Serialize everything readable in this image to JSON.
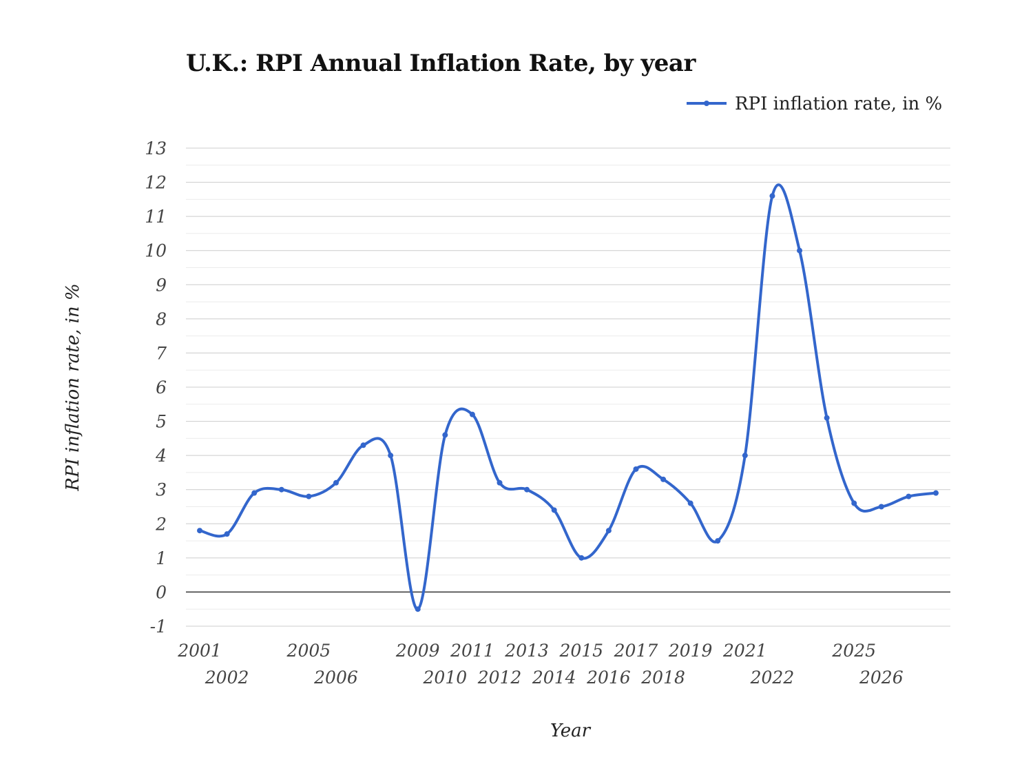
{
  "chart_data": {
    "type": "line",
    "title": "U.K.: RPI Annual Inflation Rate, by year",
    "xlabel": "Year",
    "ylabel": "RPI inflation rate, in %",
    "x": [
      2001,
      2002,
      2003,
      2004,
      2005,
      2006,
      2007,
      2008,
      2009,
      2010,
      2011,
      2012,
      2013,
      2014,
      2015,
      2016,
      2017,
      2018,
      2019,
      2020,
      2021,
      2022,
      2023,
      2024,
      2025,
      2026,
      2027,
      2028
    ],
    "x_tick_labels": [
      "2001",
      "2002",
      "2005",
      "2006",
      "2009",
      "2010",
      "2011",
      "2012",
      "2013",
      "2014",
      "2015",
      "2016",
      "2017",
      "2018",
      "2019",
      "2021",
      "2022",
      "2025",
      "2026"
    ],
    "series": [
      {
        "name": "RPI inflation rate, in %",
        "color": "#3366cc",
        "values": [
          1.8,
          1.7,
          2.9,
          3.0,
          2.8,
          3.2,
          4.3,
          4.0,
          -0.5,
          4.6,
          5.2,
          3.2,
          3.0,
          2.4,
          1.0,
          1.8,
          3.6,
          3.3,
          2.6,
          1.5,
          4.0,
          11.6,
          10.0,
          5.1,
          2.6,
          2.5,
          2.8,
          2.9
        ]
      }
    ],
    "ylim": [
      -1,
      13
    ],
    "y_ticks": [
      -1,
      0,
      1,
      2,
      3,
      4,
      5,
      6,
      7,
      8,
      9,
      10,
      11,
      12,
      13
    ],
    "grid": true,
    "smooth": true,
    "legend": "top-right"
  }
}
